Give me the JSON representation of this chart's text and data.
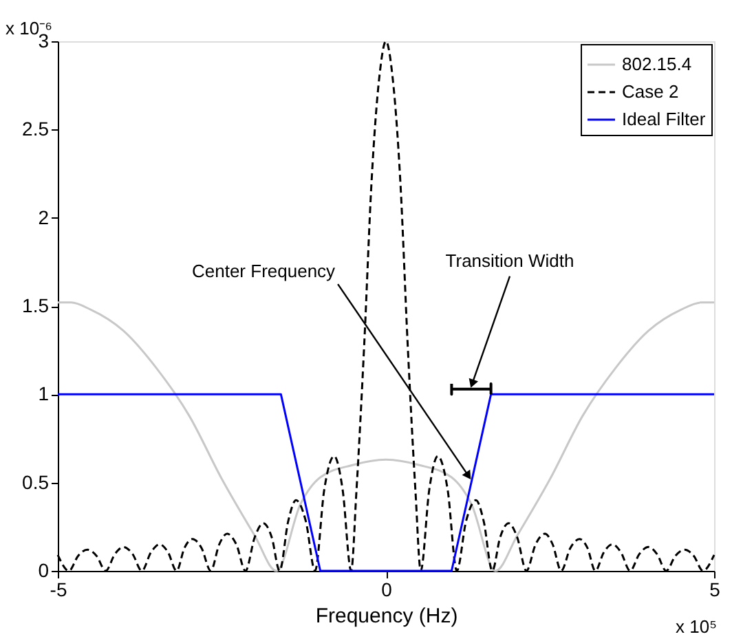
{
  "chart_data": {
    "type": "line",
    "xlabel": "Frequency (Hz)",
    "xlim": [
      -5,
      5
    ],
    "xticks": [
      -5,
      0,
      5
    ],
    "ylim": [
      0,
      3
    ],
    "yticks": [
      0,
      0.5,
      1,
      1.5,
      2,
      2.5,
      3
    ],
    "grid": false,
    "legend": "top right",
    "marker": "none",
    "series": [
      {
        "name": "802.15.4",
        "color": "#c8c8c8",
        "line_style": "solid",
        "x": [
          -5,
          -4.8,
          -4.5,
          -4,
          -3.5,
          -3,
          -2.5,
          -2,
          -1.67,
          -1.3,
          -1,
          -0.5,
          0,
          0.5,
          1,
          1.3,
          1.67,
          2,
          2.5,
          3,
          3.5,
          4,
          4.5,
          4.8,
          5
        ],
        "values": [
          1.52,
          1.52,
          1.48,
          1.36,
          1.15,
          0.88,
          0.52,
          0.2,
          0,
          0.38,
          0.53,
          0.6,
          0.63,
          0.6,
          0.53,
          0.38,
          0,
          0.2,
          0.52,
          0.88,
          1.15,
          1.36,
          1.48,
          1.52,
          1.52
        ]
      },
      {
        "name": "Case 2",
        "color": "#000000",
        "line_style": "dashed",
        "x": [
          -5,
          -4.83,
          -4.69,
          -4.55,
          -4.41,
          -4.27,
          -4.13,
          -4.0,
          -3.86,
          -3.72,
          -3.58,
          -3.45,
          -3.32,
          -3.19,
          -3.07,
          -2.95,
          -2.81,
          -2.67,
          -2.54,
          -2.42,
          -2.28,
          -2.14,
          -2.0,
          -1.87,
          -1.74,
          -1.62,
          -1.49,
          -1.37,
          -1.22,
          -1.08,
          -0.94,
          -0.79,
          -0.66,
          -0.53,
          -0.45,
          -0.33,
          -0.22,
          -0.1,
          0,
          0.1,
          0.22,
          0.33,
          0.45,
          0.53,
          0.66,
          0.79,
          0.94,
          1.08,
          1.22,
          1.37,
          1.49,
          1.62,
          1.74,
          1.87,
          2.0,
          2.14,
          2.28,
          2.42,
          2.54,
          2.67,
          2.81,
          2.95,
          3.07,
          3.19,
          3.32,
          3.45,
          3.58,
          3.72,
          3.86,
          4.0,
          4.13,
          4.27,
          4.41,
          4.55,
          4.69,
          4.83,
          5
        ],
        "values": [
          0.09,
          0,
          0.085,
          0.12,
          0.085,
          0,
          0.095,
          0.135,
          0.095,
          0,
          0.105,
          0.15,
          0.105,
          0,
          0.13,
          0.18,
          0.13,
          0,
          0.15,
          0.21,
          0.15,
          0,
          0.19,
          0.27,
          0.19,
          0,
          0.28,
          0.4,
          0.28,
          0,
          0.46,
          0.65,
          0.46,
          0,
          0.45,
          1.29,
          2.2,
          2.8,
          3.0,
          2.8,
          2.2,
          1.29,
          0.45,
          0,
          0.46,
          0.65,
          0.46,
          0,
          0.28,
          0.4,
          0.28,
          0,
          0.19,
          0.27,
          0.19,
          0,
          0.15,
          0.21,
          0.15,
          0,
          0.13,
          0.18,
          0.13,
          0,
          0.105,
          0.15,
          0.105,
          0,
          0.095,
          0.135,
          0.095,
          0,
          0.085,
          0.12,
          0.085,
          0,
          0.09
        ]
      },
      {
        "name": "Ideal Filter",
        "color": "#0000ff",
        "line_style": "solid",
        "x": [
          -5,
          -1.6,
          -1.0,
          1.0,
          1.6,
          5
        ],
        "values": [
          1,
          1,
          0,
          0,
          1,
          1
        ]
      },
      {
        "color": "#000000",
        "line_style": "solid",
        "x": [
          1.0,
          1.0,
          1.0,
          1.6,
          1.6,
          1.6
        ],
        "values": [
          1.06,
          1.0,
          1.03,
          1.03,
          1.06,
          1.0
        ]
      }
    ],
    "annotations": [
      {
        "text": "Center Frequency",
        "x": 1.28,
        "y": 0.51
      },
      {
        "text": "Transition Width",
        "x": 1.3,
        "y": 1.03
      },
      "x 10⁻⁶",
      "x 10⁵"
    ]
  }
}
